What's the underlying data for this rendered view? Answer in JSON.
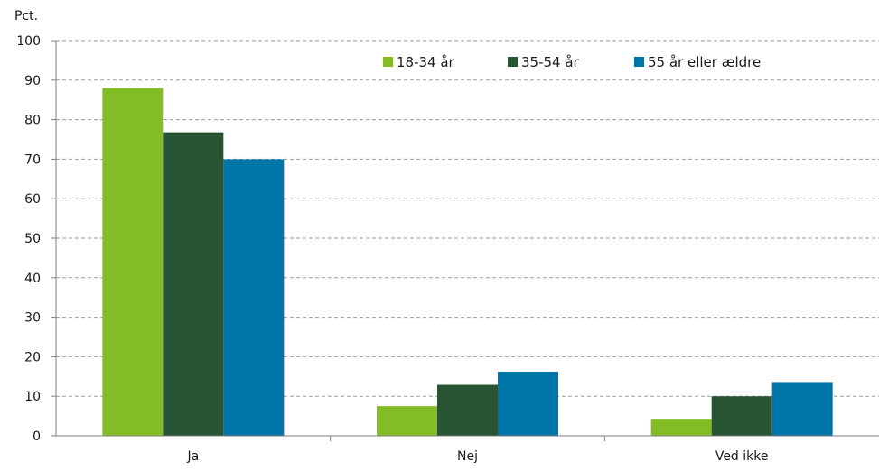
{
  "chart_data": {
    "type": "bar",
    "ylabel": "Pct.",
    "categories": [
      "Ja",
      "Nej",
      "Ved ikke"
    ],
    "series": [
      {
        "name": "18-34 år",
        "color": "#84bc26",
        "values": [
          88,
          7.5,
          4.3
        ]
      },
      {
        "name": "35-54 år",
        "color": "#2a5534",
        "values": [
          76.8,
          12.9,
          10
        ]
      },
      {
        "name": "55 år eller ældre",
        "color": "#0075a9",
        "values": [
          70,
          16.2,
          13.6
        ]
      }
    ],
    "ylim": [
      0,
      100
    ],
    "yticks": [
      0,
      10,
      20,
      30,
      40,
      50,
      60,
      70,
      80,
      90,
      100
    ],
    "grid": true,
    "legend_position": "top-right"
  }
}
